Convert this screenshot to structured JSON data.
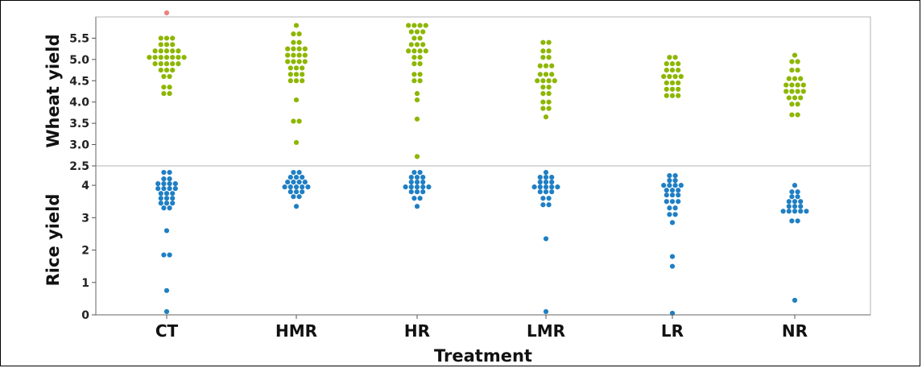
{
  "chart_data": {
    "type": "scatter",
    "subtype": "beeswarm",
    "xlabel": "Treatment",
    "categories": [
      "CT",
      "HMR",
      "HR",
      "LMR",
      "LR",
      "NR"
    ],
    "panels": [
      {
        "ylabel": "Wheat yield",
        "ylim": [
          2.5,
          6.0
        ],
        "yticks": [
          "2.5",
          "3.0",
          "3.5",
          "4.0",
          "4.5",
          "5.0",
          "5.5"
        ],
        "color": "#8db600",
        "series": [
          {
            "category": "CT",
            "values": [
              4.2,
              4.3,
              4.35,
              4.45,
              4.6,
              4.7,
              4.75,
              4.8,
              4.85,
              4.9,
              4.9,
              4.95,
              5.0,
              5.0,
              5.05,
              5.05,
              5.1,
              5.1,
              5.1,
              5.15,
              5.15,
              5.2,
              5.2,
              5.25,
              5.3,
              5.3,
              5.35,
              5.4,
              5.45,
              5.5,
              5.55,
              5.6
            ]
          },
          {
            "category": "HMR",
            "values": [
              3.05,
              3.55,
              3.55,
              4.05,
              4.5,
              4.55,
              4.6,
              4.65,
              4.7,
              4.75,
              4.8,
              4.85,
              4.9,
              4.95,
              5.0,
              5.05,
              5.05,
              5.1,
              5.15,
              5.15,
              5.2,
              5.25,
              5.3,
              5.3,
              5.35,
              5.4,
              5.5,
              5.6,
              5.7,
              5.8
            ]
          },
          {
            "category": "HR",
            "values": [
              2.72,
              3.6,
              4.05,
              4.2,
              4.5,
              4.6,
              4.65,
              4.7,
              4.9,
              5.0,
              5.05,
              5.1,
              5.2,
              5.2,
              5.3,
              5.3,
              5.35,
              5.4,
              5.45,
              5.5,
              5.6,
              5.65,
              5.7,
              5.75,
              5.8,
              5.8,
              5.85,
              5.9
            ]
          },
          {
            "category": "LMR",
            "values": [
              3.65,
              3.85,
              3.9,
              4.0,
              4.1,
              4.2,
              4.25,
              4.35,
              4.4,
              4.5,
              4.55,
              4.6,
              4.6,
              4.65,
              4.7,
              4.75,
              4.85,
              4.9,
              4.95,
              5.05,
              5.1,
              5.2,
              5.3,
              5.4,
              5.5
            ]
          },
          {
            "category": "LR",
            "values": [
              4.15,
              4.2,
              4.25,
              4.3,
              4.35,
              4.4,
              4.45,
              4.5,
              4.55,
              4.6,
              4.6,
              4.65,
              4.7,
              4.75,
              4.8,
              4.85,
              4.9,
              4.95,
              5.0,
              5.05,
              5.1
            ]
          },
          {
            "category": "NR",
            "values": [
              3.7,
              3.8,
              3.95,
              4.05,
              4.1,
              4.15,
              4.2,
              4.25,
              4.3,
              4.3,
              4.35,
              4.4,
              4.4,
              4.45,
              4.5,
              4.55,
              4.6,
              4.65,
              4.75,
              4.85,
              4.95,
              5.05,
              5.1
            ]
          }
        ]
      },
      {
        "ylabel": "Rice yield",
        "ylim": [
          0,
          4.6
        ],
        "yticks": [
          "0",
          "1",
          "2",
          "3",
          "4"
        ],
        "color": "#1f7fc4",
        "series": [
          {
            "category": "CT",
            "values": [
              0.1,
              0.75,
              1.85,
              1.85,
              2.6,
              3.3,
              3.35,
              3.45,
              3.5,
              3.55,
              3.6,
              3.65,
              3.7,
              3.75,
              3.8,
              3.85,
              3.9,
              3.95,
              4.0,
              4.0,
              4.05,
              4.05,
              4.1,
              4.15,
              4.2,
              4.3,
              4.4,
              4.5
            ]
          },
          {
            "category": "HMR",
            "values": [
              3.35,
              3.65,
              3.75,
              3.8,
              3.85,
              3.9,
              3.95,
              4.0,
              4.0,
              4.05,
              4.05,
              4.1,
              4.1,
              4.15,
              4.2,
              4.25,
              4.3,
              4.35,
              4.4,
              4.5
            ]
          },
          {
            "category": "HR",
            "values": [
              3.35,
              3.6,
              3.7,
              3.8,
              3.85,
              3.9,
              3.95,
              4.0,
              4.0,
              4.05,
              4.05,
              4.1,
              4.15,
              4.2,
              4.25,
              4.3,
              4.35,
              4.4,
              4.5
            ]
          },
          {
            "category": "LMR",
            "values": [
              0.1,
              2.35,
              3.4,
              3.5,
              3.6,
              3.7,
              3.8,
              3.85,
              3.9,
              3.95,
              4.0,
              4.0,
              4.05,
              4.05,
              4.1,
              4.15,
              4.2,
              4.25,
              4.3,
              4.35,
              4.4
            ]
          },
          {
            "category": "LR",
            "values": [
              0.05,
              1.5,
              1.8,
              2.85,
              3.1,
              3.2,
              3.3,
              3.4,
              3.5,
              3.55,
              3.6,
              3.7,
              3.75,
              3.8,
              3.85,
              3.9,
              3.95,
              4.0,
              4.05,
              4.05,
              4.1,
              4.15,
              4.2,
              4.3,
              4.4
            ]
          },
          {
            "category": "NR",
            "values": [
              0.45,
              2.9,
              2.9,
              3.2,
              3.25,
              3.25,
              3.3,
              3.3,
              3.35,
              3.4,
              3.45,
              3.5,
              3.55,
              3.6,
              3.65,
              3.7,
              3.8,
              3.9,
              4.0
            ]
          }
        ]
      }
    ],
    "annotations": [
      {
        "panel": 0,
        "category": "CT",
        "value": 6.0,
        "color": "#f08080",
        "note": "partially clipped point at top edge"
      }
    ],
    "grid": false,
    "legend": "none"
  }
}
